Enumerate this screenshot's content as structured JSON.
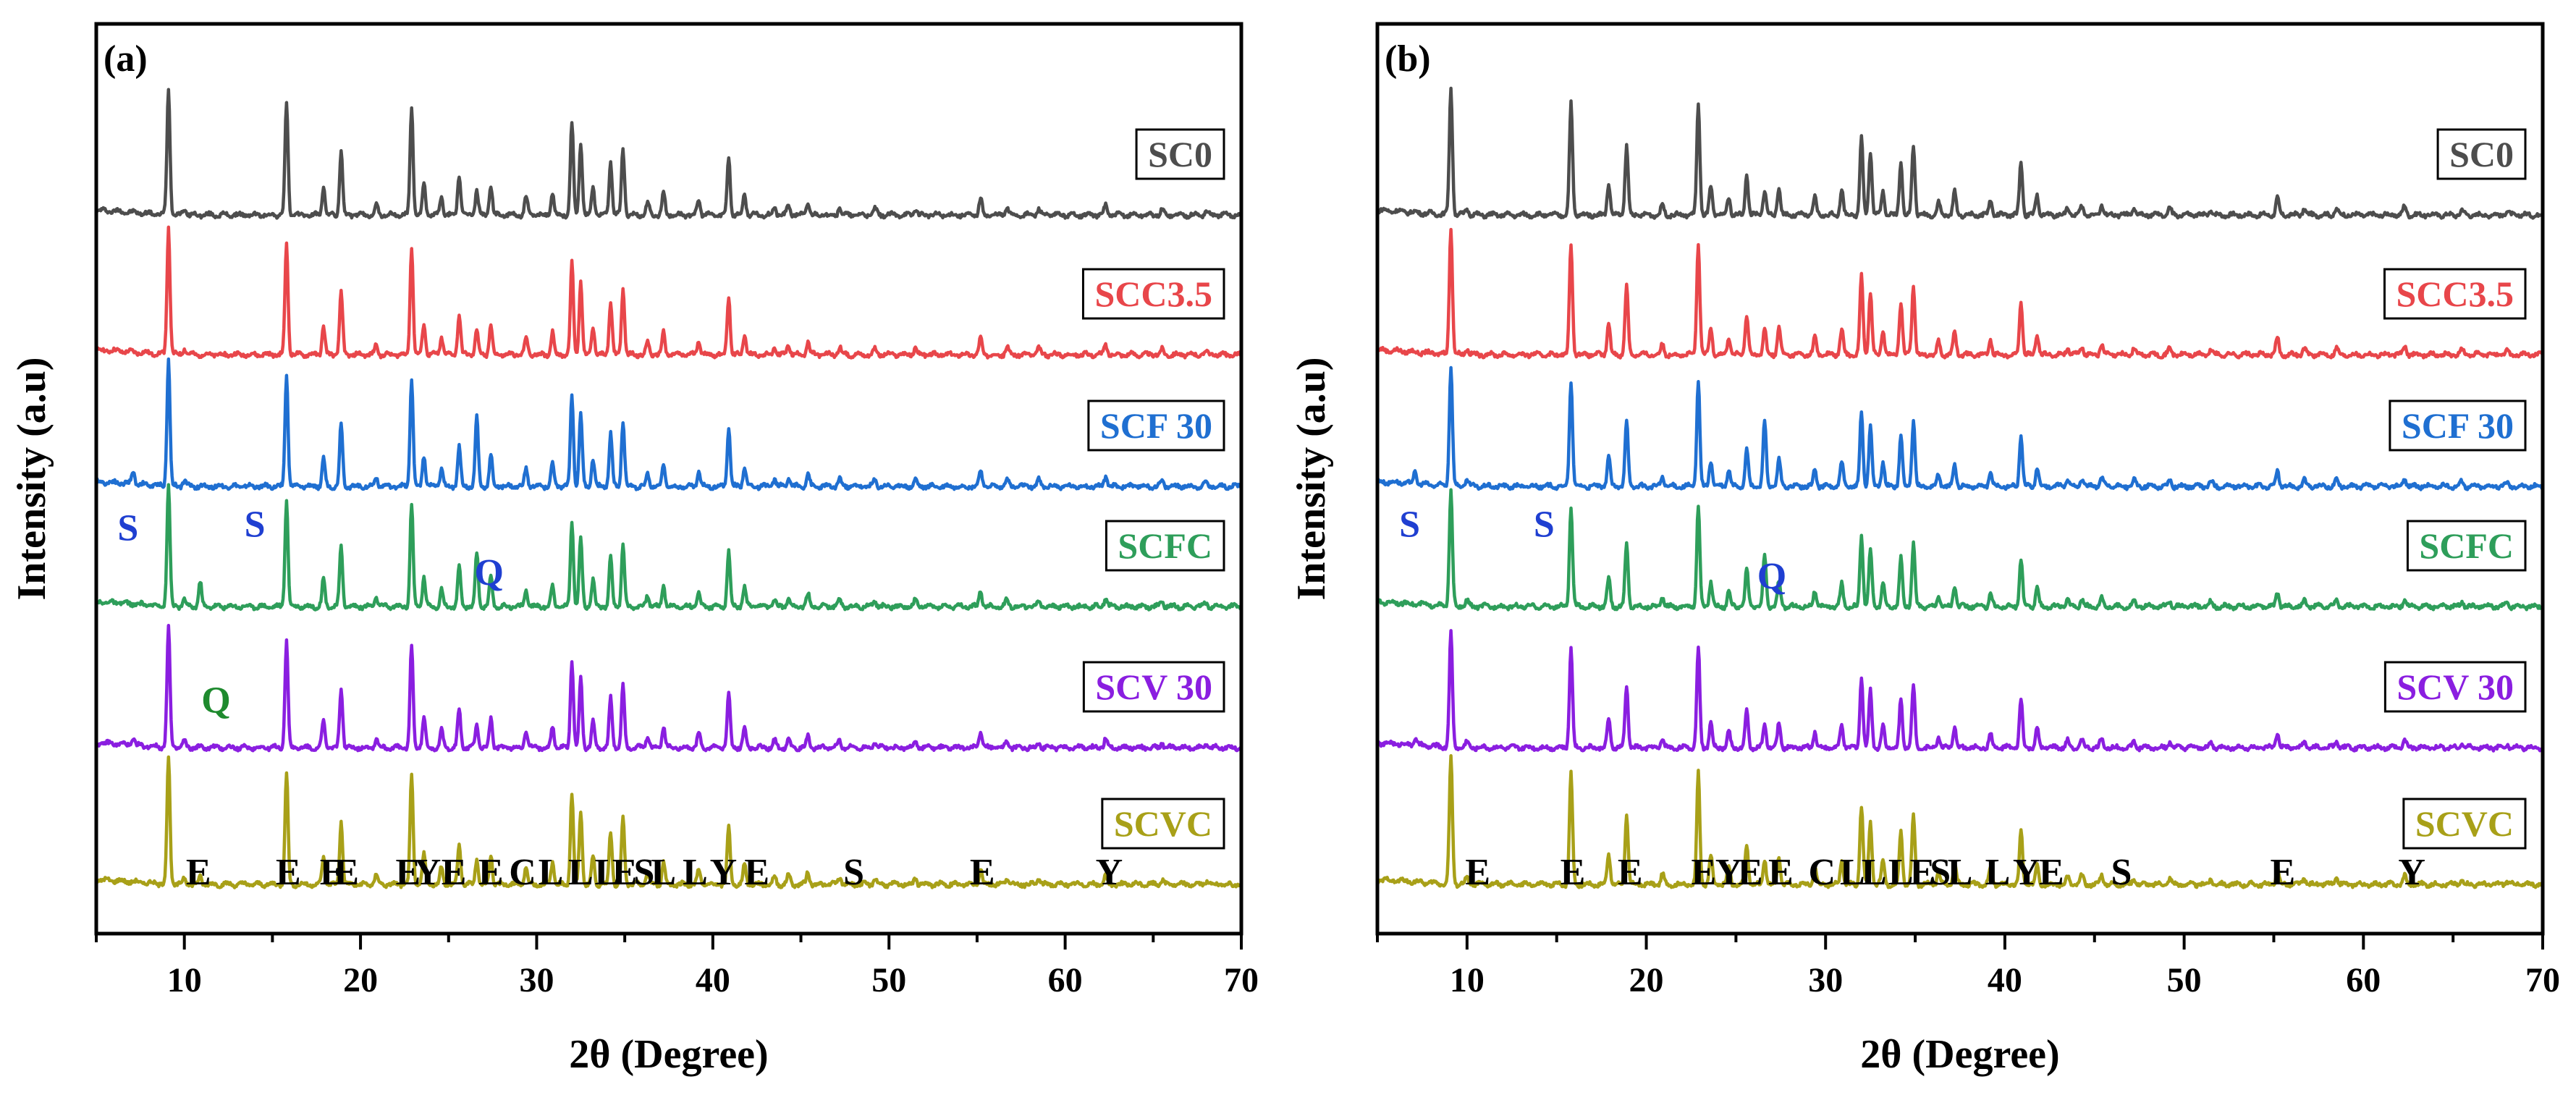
{
  "chart_data": [
    {
      "type": "line",
      "panel_label": "(a)",
      "xlabel": "2θ (Degree)",
      "ylabel": "Intensity (a.u)",
      "xlim": [
        5,
        70
      ],
      "xticks": [
        10,
        20,
        30,
        40,
        50,
        60,
        70
      ],
      "series": [
        {
          "name": "SC0",
          "color": "#4d4d4d",
          "baseline": 1,
          "scale": 1.0
        },
        {
          "name": "SCC3.5",
          "color": "#e8464a",
          "baseline": 2,
          "scale": 1.0
        },
        {
          "name": "SCF 30",
          "color": "#1f6fd1",
          "baseline": 3,
          "scale": 1.0
        },
        {
          "name": "SCFC",
          "color": "#2e9e5a",
          "baseline": 4,
          "scale": 0.95
        },
        {
          "name": "SCV 30",
          "color": "#8a1ee0",
          "baseline": 5,
          "scale": 0.95
        },
        {
          "name": "SCVC",
          "color": "#a8a018",
          "baseline": 6,
          "scale": 1.0
        }
      ],
      "peaks": [
        {
          "x": 9.1,
          "h": 1.0
        },
        {
          "x": 10.0,
          "h": 0.05
        },
        {
          "x": 15.8,
          "h": 0.88
        },
        {
          "x": 17.9,
          "h": 0.22
        },
        {
          "x": 18.9,
          "h": 0.5
        },
        {
          "x": 20.9,
          "h": 0.08
        },
        {
          "x": 22.9,
          "h": 0.85
        },
        {
          "x": 23.6,
          "h": 0.25
        },
        {
          "x": 24.6,
          "h": 0.14
        },
        {
          "x": 25.6,
          "h": 0.32
        },
        {
          "x": 26.6,
          "h": 0.2
        },
        {
          "x": 27.4,
          "h": 0.24
        },
        {
          "x": 29.4,
          "h": 0.14
        },
        {
          "x": 30.9,
          "h": 0.18
        },
        {
          "x": 32.0,
          "h": 0.72
        },
        {
          "x": 32.5,
          "h": 0.58
        },
        {
          "x": 33.2,
          "h": 0.22
        },
        {
          "x": 34.2,
          "h": 0.42
        },
        {
          "x": 34.9,
          "h": 0.52
        },
        {
          "x": 36.3,
          "h": 0.1
        },
        {
          "x": 37.2,
          "h": 0.18
        },
        {
          "x": 39.2,
          "h": 0.12
        },
        {
          "x": 40.9,
          "h": 0.46
        },
        {
          "x": 41.8,
          "h": 0.16
        },
        {
          "x": 43.5,
          "h": 0.06
        },
        {
          "x": 44.3,
          "h": 0.08
        },
        {
          "x": 45.4,
          "h": 0.1
        },
        {
          "x": 47.2,
          "h": 0.06
        },
        {
          "x": 49.2,
          "h": 0.05
        },
        {
          "x": 51.5,
          "h": 0.05
        },
        {
          "x": 55.2,
          "h": 0.13
        },
        {
          "x": 56.7,
          "h": 0.06
        },
        {
          "x": 58.5,
          "h": 0.05
        },
        {
          "x": 62.3,
          "h": 0.08
        },
        {
          "x": 65.5,
          "h": 0.04
        },
        {
          "x": 68.0,
          "h": 0.03
        }
      ],
      "extra_peaks": {
        "SCF 30": [
          {
            "x": 7.1,
            "h": 0.1
          },
          {
            "x": 26.6,
            "h": 0.35
          }
        ],
        "SCFC": [
          {
            "x": 10.9,
            "h": 0.2
          },
          {
            "x": 26.6,
            "h": 0.25
          }
        ],
        "SCV 30": [
          {
            "x": 7.1,
            "h": 0.05
          }
        ],
        "SCVC": [
          {
            "x": 10.9,
            "h": 0.06
          }
        ]
      },
      "annotations": [
        {
          "text": "E",
          "x": 10.8,
          "level": 6.85,
          "color": "#000"
        },
        {
          "text": "E",
          "x": 15.9,
          "level": 6.87,
          "color": "#000"
        },
        {
          "text": "E",
          "x": 18.4,
          "level": 6.4,
          "color": "#000"
        },
        {
          "text": "E",
          "x": 19.2,
          "level": 6.62,
          "color": "#000"
        },
        {
          "text": "E",
          "x": 22.7,
          "level": 6.87,
          "color": "#000"
        },
        {
          "text": "Y",
          "x": 23.8,
          "level": 6.4,
          "color": "#000"
        },
        {
          "text": "E",
          "x": 25.3,
          "level": 6.42,
          "color": "#000"
        },
        {
          "text": "E",
          "x": 27.4,
          "level": 6.36,
          "color": "#000"
        },
        {
          "text": "C",
          "x": 29.2,
          "level": 6.3,
          "color": "#000"
        },
        {
          "text": "L",
          "x": 30.8,
          "level": 6.37,
          "color": "#000"
        },
        {
          "text": "L",
          "x": 32.5,
          "level": 6.7,
          "color": "#000"
        },
        {
          "text": "L",
          "x": 34.0,
          "level": 6.5,
          "color": "#000"
        },
        {
          "text": "E",
          "x": 35.0,
          "level": 6.72,
          "color": "#000"
        },
        {
          "text": "S",
          "x": 36.1,
          "level": 6.2,
          "color": "#000"
        },
        {
          "text": "L",
          "x": 37.2,
          "level": 6.3,
          "color": "#000"
        },
        {
          "text": "L",
          "x": 39.0,
          "level": 6.2,
          "color": "#000"
        },
        {
          "text": "Y",
          "x": 40.6,
          "level": 6.62,
          "color": "#000"
        },
        {
          "text": "E",
          "x": 42.5,
          "level": 6.22,
          "color": "#000"
        },
        {
          "text": "S",
          "x": 48.0,
          "level": 6.22,
          "color": "#000"
        },
        {
          "text": "E",
          "x": 55.3,
          "level": 6.25,
          "color": "#000"
        },
        {
          "text": "Y",
          "x": 62.5,
          "level": 6.2,
          "color": "#000"
        },
        {
          "text": "S",
          "x": 6.8,
          "level": 3.45,
          "color": "#1f3fd1"
        },
        {
          "text": "S",
          "x": 14.0,
          "level": 3.42,
          "color": "#1f3fd1"
        },
        {
          "text": "Q",
          "x": 27.3,
          "level": 3.82,
          "color": "#1f3fd1"
        },
        {
          "text": "Q",
          "x": 11.8,
          "level": 4.75,
          "color": "#1e8a2e"
        }
      ]
    },
    {
      "type": "line",
      "panel_label": "(b)",
      "xlabel": "2θ (Degree)",
      "ylabel": "Intensity (a.u)",
      "xlim": [
        5,
        70
      ],
      "xticks": [
        10,
        20,
        30,
        40,
        50,
        60,
        70
      ],
      "series": [
        {
          "name": "SC0",
          "color": "#4d4d4d",
          "baseline": 1,
          "scale": 1.0
        },
        {
          "name": "SCC3.5",
          "color": "#e8464a",
          "baseline": 2,
          "scale": 1.0
        },
        {
          "name": "SCF 30",
          "color": "#1f6fd1",
          "baseline": 3,
          "scale": 0.95
        },
        {
          "name": "SCFC",
          "color": "#2e9e5a",
          "baseline": 4,
          "scale": 0.9
        },
        {
          "name": "SCV 30",
          "color": "#8a1ee0",
          "baseline": 5,
          "scale": 0.9
        },
        {
          "name": "SCVC",
          "color": "#a8a018",
          "baseline": 6,
          "scale": 1.0
        }
      ],
      "peaks": [
        {
          "x": 9.1,
          "h": 1.0
        },
        {
          "x": 10.0,
          "h": 0.05
        },
        {
          "x": 15.8,
          "h": 0.88
        },
        {
          "x": 17.9,
          "h": 0.25
        },
        {
          "x": 18.9,
          "h": 0.55
        },
        {
          "x": 20.9,
          "h": 0.08
        },
        {
          "x": 22.9,
          "h": 0.88
        },
        {
          "x": 23.6,
          "h": 0.22
        },
        {
          "x": 24.6,
          "h": 0.14
        },
        {
          "x": 25.6,
          "h": 0.32
        },
        {
          "x": 26.6,
          "h": 0.2
        },
        {
          "x": 27.4,
          "h": 0.22
        },
        {
          "x": 29.4,
          "h": 0.14
        },
        {
          "x": 30.9,
          "h": 0.2
        },
        {
          "x": 32.0,
          "h": 0.62
        },
        {
          "x": 32.5,
          "h": 0.5
        },
        {
          "x": 33.2,
          "h": 0.2
        },
        {
          "x": 34.2,
          "h": 0.42
        },
        {
          "x": 34.9,
          "h": 0.55
        },
        {
          "x": 36.3,
          "h": 0.1
        },
        {
          "x": 37.2,
          "h": 0.18
        },
        {
          "x": 39.2,
          "h": 0.12
        },
        {
          "x": 40.9,
          "h": 0.42
        },
        {
          "x": 41.8,
          "h": 0.16
        },
        {
          "x": 43.5,
          "h": 0.06
        },
        {
          "x": 44.3,
          "h": 0.07
        },
        {
          "x": 45.4,
          "h": 0.08
        },
        {
          "x": 47.2,
          "h": 0.05
        },
        {
          "x": 49.2,
          "h": 0.05
        },
        {
          "x": 51.5,
          "h": 0.04
        },
        {
          "x": 55.2,
          "h": 0.13
        },
        {
          "x": 56.7,
          "h": 0.05
        },
        {
          "x": 58.5,
          "h": 0.05
        },
        {
          "x": 62.3,
          "h": 0.07
        },
        {
          "x": 65.5,
          "h": 0.04
        },
        {
          "x": 68.0,
          "h": 0.03
        }
      ],
      "extra_peaks": {
        "SCF 30": [
          {
            "x": 7.1,
            "h": 0.1
          },
          {
            "x": 26.6,
            "h": 0.35
          }
        ],
        "SCFC": [
          {
            "x": 26.6,
            "h": 0.25
          }
        ],
        "SCV 30": [
          {
            "x": 7.1,
            "h": 0.06
          }
        ],
        "SCVC": []
      },
      "annotations": [
        {
          "text": "E",
          "x": 10.6,
          "level": 6.9,
          "color": "#000"
        },
        {
          "text": "E",
          "x": 15.9,
          "level": 6.92,
          "color": "#000"
        },
        {
          "text": "E",
          "x": 19.1,
          "level": 6.72,
          "color": "#000"
        },
        {
          "text": "E",
          "x": 23.2,
          "level": 6.9,
          "color": "#000"
        },
        {
          "text": "Y",
          "x": 24.6,
          "level": 6.38,
          "color": "#000"
        },
        {
          "text": "E",
          "x": 25.8,
          "level": 6.55,
          "color": "#000"
        },
        {
          "text": "E",
          "x": 27.5,
          "level": 6.38,
          "color": "#000"
        },
        {
          "text": "C",
          "x": 29.8,
          "level": 6.4,
          "color": "#000"
        },
        {
          "text": "L",
          "x": 31.5,
          "level": 6.4,
          "color": "#000"
        },
        {
          "text": "L",
          "x": 32.7,
          "level": 6.7,
          "color": "#000"
        },
        {
          "text": "L",
          "x": 34.2,
          "level": 6.4,
          "color": "#000"
        },
        {
          "text": "E",
          "x": 35.4,
          "level": 6.77,
          "color": "#000"
        },
        {
          "text": "S",
          "x": 36.4,
          "level": 6.2,
          "color": "#000"
        },
        {
          "text": "L",
          "x": 37.5,
          "level": 6.25,
          "color": "#000"
        },
        {
          "text": "L",
          "x": 39.6,
          "level": 6.15,
          "color": "#000"
        },
        {
          "text": "Y",
          "x": 41.2,
          "level": 6.55,
          "color": "#000"
        },
        {
          "text": "E",
          "x": 42.6,
          "level": 6.4,
          "color": "#000"
        },
        {
          "text": "S",
          "x": 46.5,
          "level": 6.25,
          "color": "#000"
        },
        {
          "text": "E",
          "x": 55.5,
          "level": 6.35,
          "color": "#000"
        },
        {
          "text": "Y",
          "x": 62.7,
          "level": 6.25,
          "color": "#000"
        },
        {
          "text": "S",
          "x": 6.8,
          "level": 3.42,
          "color": "#1f3fd1"
        },
        {
          "text": "S",
          "x": 14.3,
          "level": 3.42,
          "color": "#1f3fd1"
        },
        {
          "text": "Q",
          "x": 27.0,
          "level": 3.85,
          "color": "#1f3fd1"
        }
      ]
    }
  ]
}
